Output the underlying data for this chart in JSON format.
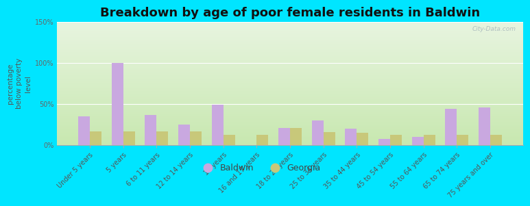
{
  "title": "Breakdown by age of poor female residents in Baldwin",
  "ylabel": "percentage\nbelow poverty\nlevel",
  "categories": [
    "Under 5 years",
    "5 years",
    "6 to 11 years",
    "12 to 14 years",
    "15 years",
    "16 and 17 years",
    "18 to 24 years",
    "25 to 34 years",
    "35 to 44 years",
    "45 to 54 years",
    "55 to 64 years",
    "65 to 74 years",
    "75 years and over"
  ],
  "baldwin": [
    35,
    100,
    37,
    25,
    49,
    0,
    21,
    30,
    20,
    8,
    10,
    44,
    46
  ],
  "georgia": [
    17,
    17,
    17,
    17,
    13,
    13,
    21,
    16,
    15,
    13,
    13,
    13,
    13
  ],
  "baldwin_color": "#c9a8e0",
  "georgia_color": "#c8c87a",
  "ylim": [
    0,
    150
  ],
  "yticks": [
    0,
    50,
    100,
    150
  ],
  "ytick_labels": [
    "0%",
    "50%",
    "100%",
    "150%"
  ],
  "bar_width": 0.35,
  "title_fontsize": 13,
  "tick_fontsize": 7,
  "ylabel_fontsize": 7.5,
  "legend_fontsize": 9,
  "outer_bg": "#00e5ff",
  "watermark": "City-Data.com"
}
